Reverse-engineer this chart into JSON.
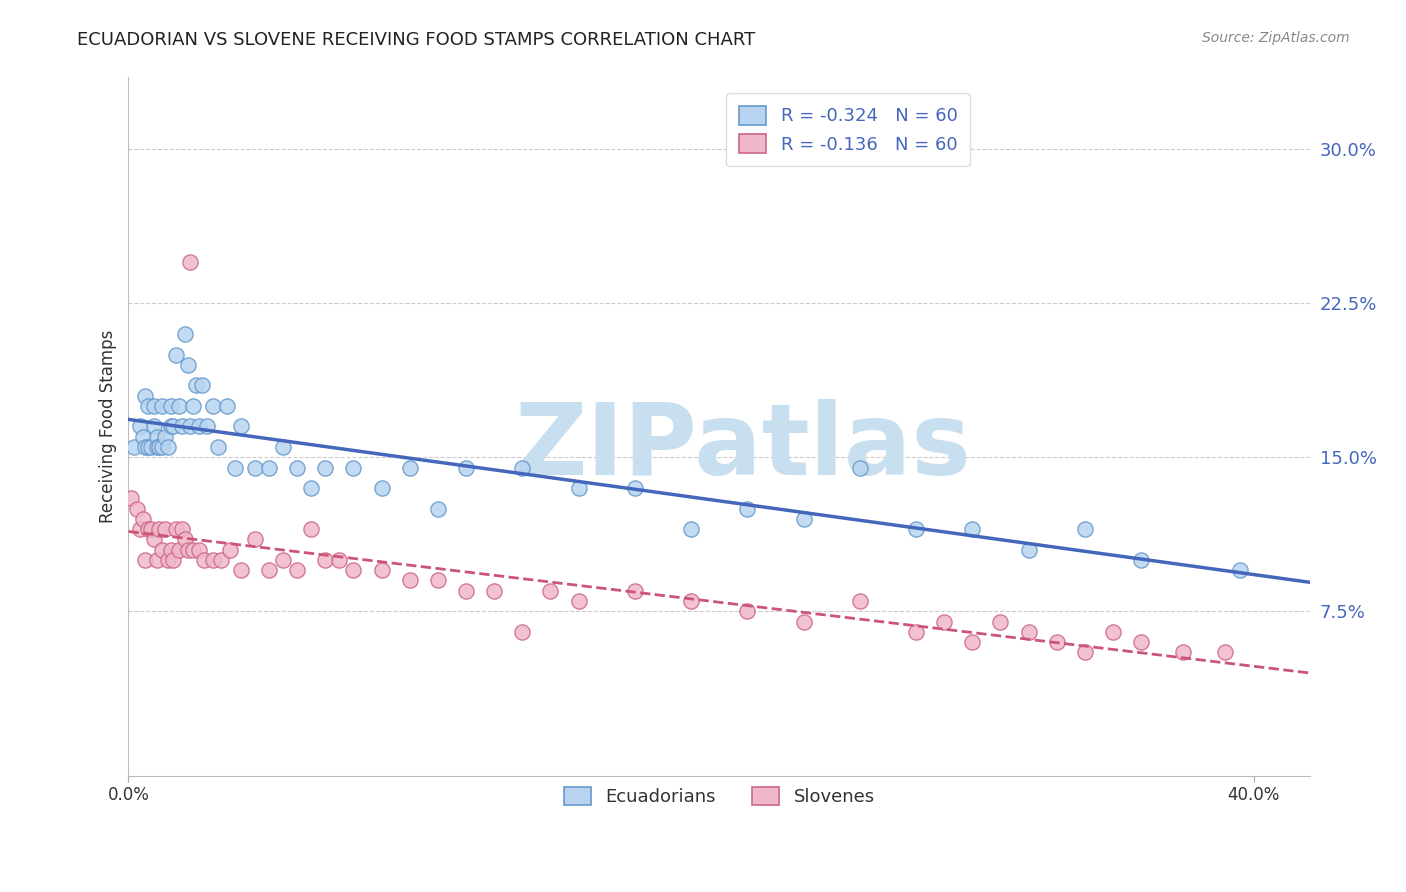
{
  "title": "ECUADORIAN VS SLOVENE RECEIVING FOOD STAMPS CORRELATION CHART",
  "source": "Source: ZipAtlas.com",
  "ylabel": "Receiving Food Stamps",
  "ytick_vals": [
    0.075,
    0.15,
    0.225,
    0.3
  ],
  "ytick_labels": [
    "7.5%",
    "15.0%",
    "22.5%",
    "30.0%"
  ],
  "xtick_vals": [
    0.0,
    0.4
  ],
  "xtick_labels": [
    "0.0%",
    "40.0%"
  ],
  "xlim": [
    0.0,
    0.42
  ],
  "ylim": [
    -0.005,
    0.335
  ],
  "legend_r1": "R = -0.324",
  "legend_n1": "N = 60",
  "legend_r2": "R = -0.136",
  "legend_n2": "N = 60",
  "legend_label1": "Ecuadorians",
  "legend_label2": "Slovenes",
  "color_ecuadorian_fill": "#b8d4f0",
  "color_ecuadorian_edge": "#6699cc",
  "color_slovene_fill": "#f0b8c8",
  "color_slovene_edge": "#cc6688",
  "color_line_ecuadorian": "#4466bb",
  "color_line_slovene": "#cc5577",
  "watermark_color": "#c8dff0",
  "ecuadorian_x": [
    0.002,
    0.004,
    0.005,
    0.006,
    0.006,
    0.007,
    0.007,
    0.008,
    0.009,
    0.009,
    0.01,
    0.01,
    0.011,
    0.012,
    0.012,
    0.013,
    0.014,
    0.015,
    0.015,
    0.016,
    0.017,
    0.018,
    0.019,
    0.02,
    0.021,
    0.022,
    0.023,
    0.024,
    0.025,
    0.026,
    0.028,
    0.03,
    0.032,
    0.035,
    0.038,
    0.04,
    0.045,
    0.05,
    0.055,
    0.06,
    0.065,
    0.07,
    0.08,
    0.09,
    0.1,
    0.11,
    0.12,
    0.14,
    0.16,
    0.18,
    0.2,
    0.22,
    0.24,
    0.26,
    0.28,
    0.3,
    0.32,
    0.34,
    0.36,
    0.395
  ],
  "ecuadorian_y": [
    0.155,
    0.165,
    0.16,
    0.155,
    0.18,
    0.155,
    0.175,
    0.155,
    0.165,
    0.175,
    0.16,
    0.155,
    0.155,
    0.155,
    0.175,
    0.16,
    0.155,
    0.165,
    0.175,
    0.165,
    0.2,
    0.175,
    0.165,
    0.21,
    0.195,
    0.165,
    0.175,
    0.185,
    0.165,
    0.185,
    0.165,
    0.175,
    0.155,
    0.175,
    0.145,
    0.165,
    0.145,
    0.145,
    0.155,
    0.145,
    0.135,
    0.145,
    0.145,
    0.135,
    0.145,
    0.125,
    0.145,
    0.145,
    0.135,
    0.135,
    0.115,
    0.125,
    0.12,
    0.145,
    0.115,
    0.115,
    0.105,
    0.115,
    0.1,
    0.095
  ],
  "slovene_x": [
    0.001,
    0.003,
    0.004,
    0.005,
    0.006,
    0.007,
    0.008,
    0.009,
    0.01,
    0.011,
    0.012,
    0.013,
    0.014,
    0.015,
    0.016,
    0.017,
    0.018,
    0.019,
    0.02,
    0.021,
    0.022,
    0.023,
    0.025,
    0.027,
    0.03,
    0.033,
    0.036,
    0.04,
    0.045,
    0.05,
    0.055,
    0.06,
    0.065,
    0.07,
    0.075,
    0.08,
    0.09,
    0.1,
    0.11,
    0.12,
    0.13,
    0.14,
    0.15,
    0.16,
    0.18,
    0.2,
    0.22,
    0.24,
    0.26,
    0.28,
    0.29,
    0.3,
    0.31,
    0.32,
    0.33,
    0.34,
    0.35,
    0.36,
    0.375,
    0.39
  ],
  "slovene_y": [
    0.13,
    0.125,
    0.115,
    0.12,
    0.1,
    0.115,
    0.115,
    0.11,
    0.1,
    0.115,
    0.105,
    0.115,
    0.1,
    0.105,
    0.1,
    0.115,
    0.105,
    0.115,
    0.11,
    0.105,
    0.245,
    0.105,
    0.105,
    0.1,
    0.1,
    0.1,
    0.105,
    0.095,
    0.11,
    0.095,
    0.1,
    0.095,
    0.115,
    0.1,
    0.1,
    0.095,
    0.095,
    0.09,
    0.09,
    0.085,
    0.085,
    0.065,
    0.085,
    0.08,
    0.085,
    0.08,
    0.075,
    0.07,
    0.08,
    0.065,
    0.07,
    0.06,
    0.07,
    0.065,
    0.06,
    0.055,
    0.065,
    0.06,
    0.055,
    0.055
  ]
}
